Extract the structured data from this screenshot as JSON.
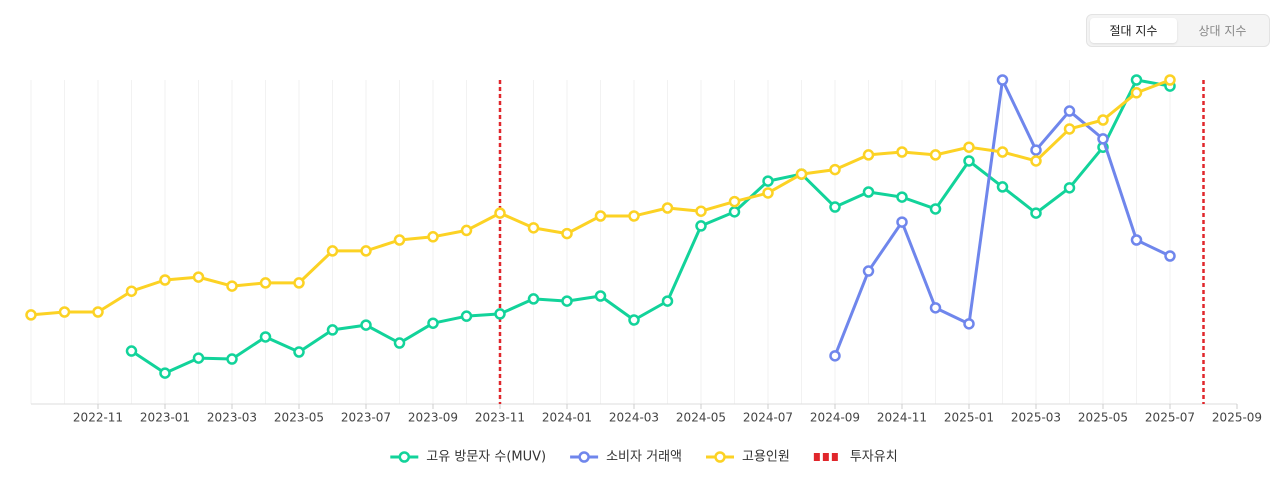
{
  "toggle": {
    "options": [
      "절대 지수",
      "상대 지수"
    ],
    "active": 0
  },
  "chart_data": {
    "type": "line",
    "x": [
      "2022-09",
      "2022-10",
      "2022-11",
      "2022-12",
      "2023-01",
      "2023-02",
      "2023-03",
      "2023-04",
      "2023-05",
      "2023-06",
      "2023-07",
      "2023-08",
      "2023-09",
      "2023-10",
      "2023-11",
      "2023-12",
      "2024-01",
      "2024-02",
      "2024-03",
      "2024-04",
      "2024-05",
      "2024-06",
      "2024-07",
      "2024-08",
      "2024-09",
      "2024-10",
      "2024-11",
      "2024-12",
      "2025-01",
      "2025-02",
      "2025-03",
      "2025-04",
      "2025-05",
      "2025-06",
      "2025-07"
    ],
    "xticks": [
      "2022-11",
      "2023-01",
      "2023-03",
      "2023-05",
      "2023-07",
      "2023-09",
      "2023-11",
      "2024-01",
      "2024-03",
      "2024-05",
      "2024-07",
      "2024-09",
      "2024-11",
      "2025-01",
      "2025-03",
      "2025-05",
      "2025-07",
      "2025-09"
    ],
    "xlim": [
      "2022-09",
      "2025-09"
    ],
    "ylim": [
      0,
      100
    ],
    "grid": true,
    "series": [
      {
        "name": "고유 방문자 수(MUV)",
        "color": "#12d39a",
        "values": [
          null,
          null,
          null,
          15.3,
          8.4,
          13.1,
          12.8,
          19.7,
          15,
          21.9,
          23.4,
          17.8,
          24,
          26.2,
          26.9,
          31.6,
          30.9,
          32.5,
          25,
          30.9,
          54.4,
          58.8,
          68.4,
          70.6,
          60.3,
          65,
          63.4,
          59.7,
          74.7,
          66.6,
          58.4,
          66.3,
          79,
          100,
          98.1
        ]
      },
      {
        "name": "소비자 거래액",
        "color": "#6f86ec",
        "values": [
          null,
          null,
          null,
          null,
          null,
          null,
          null,
          null,
          null,
          null,
          null,
          null,
          null,
          null,
          null,
          null,
          null,
          null,
          null,
          null,
          null,
          null,
          null,
          null,
          13.8,
          40.3,
          55.6,
          28.8,
          23.8,
          100,
          78.1,
          90.3,
          81.6,
          50,
          45
        ]
      },
      {
        "name": "고용인원",
        "color": "#fcd224",
        "values": [
          26.6,
          27.5,
          27.5,
          34,
          37.5,
          38.4,
          35.6,
          36.6,
          36.6,
          46.6,
          46.6,
          50,
          51,
          53,
          58.4,
          53.8,
          52,
          57.5,
          57.5,
          60,
          59,
          62,
          64.7,
          70.6,
          72,
          76.6,
          77.5,
          76.6,
          79,
          77.5,
          74.7,
          84.7,
          87.5,
          96,
          100
        ]
      }
    ],
    "events": {
      "name": "투자유치",
      "color": "#e0262b",
      "x": [
        "2023-11",
        "2025-08"
      ]
    }
  }
}
